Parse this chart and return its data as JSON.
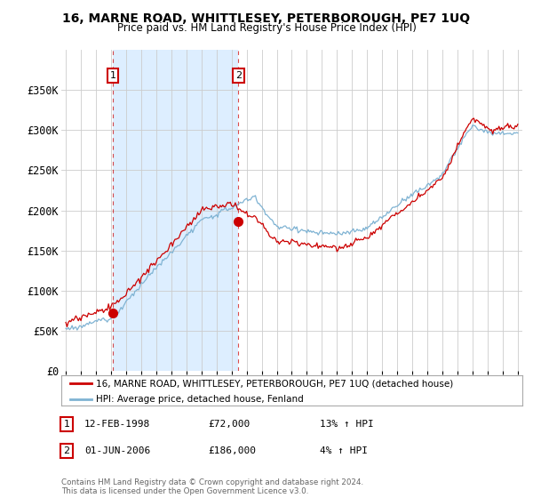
{
  "title": "16, MARNE ROAD, WHITTLESEY, PETERBOROUGH, PE7 1UQ",
  "subtitle": "Price paid vs. HM Land Registry's House Price Index (HPI)",
  "legend_line1": "16, MARNE ROAD, WHITTLESEY, PETERBOROUGH, PE7 1UQ (detached house)",
  "legend_line2": "HPI: Average price, detached house, Fenland",
  "annotation1_label": "1",
  "annotation1_date": "12-FEB-1998",
  "annotation1_price": "£72,000",
  "annotation1_hpi": "13% ↑ HPI",
  "annotation2_label": "2",
  "annotation2_date": "01-JUN-2006",
  "annotation2_price": "£186,000",
  "annotation2_hpi": "4% ↑ HPI",
  "footer": "Contains HM Land Registry data © Crown copyright and database right 2024.\nThis data is licensed under the Open Government Licence v3.0.",
  "line_color_red": "#cc0000",
  "line_color_blue": "#7fb3d3",
  "shade_color": "#ddeeff",
  "background_color": "#ffffff",
  "grid_color": "#cccccc",
  "sale1_x": 1998.12,
  "sale1_y": 72000,
  "sale2_x": 2006.45,
  "sale2_y": 186000,
  "ylim": [
    0,
    400000
  ],
  "yticks": [
    0,
    50000,
    100000,
    150000,
    200000,
    250000,
    300000,
    350000
  ],
  "ytick_labels": [
    "£0",
    "£50K",
    "£100K",
    "£150K",
    "£200K",
    "£250K",
    "£300K",
    "£350K"
  ],
  "xmin": 1994.7,
  "xmax": 2025.3
}
